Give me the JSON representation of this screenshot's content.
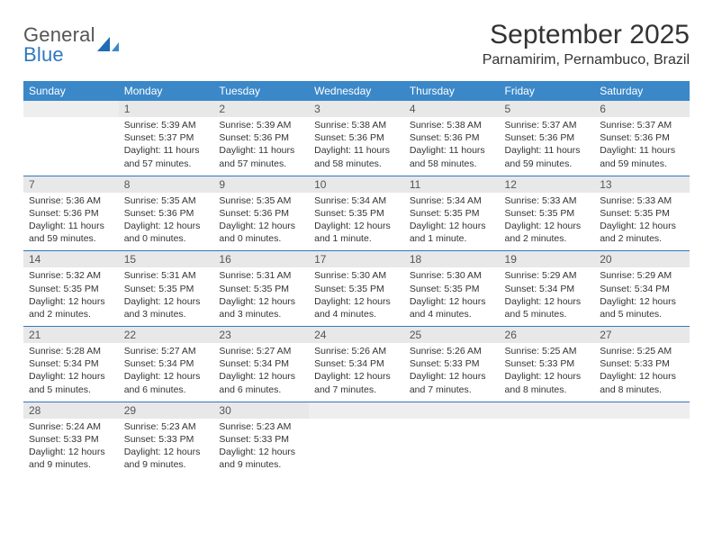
{
  "logo": {
    "line1": "General",
    "line2": "Blue"
  },
  "title": "September 2025",
  "location": "Parnamirim, Pernambuco, Brazil",
  "colors": {
    "header_bg": "#3b88c9",
    "header_text": "#ffffff",
    "daynum_bg": "#e8e8e8",
    "rule": "#2f78bf",
    "logo_gray": "#555555",
    "logo_blue": "#2f78bf"
  },
  "weekdays": [
    "Sunday",
    "Monday",
    "Tuesday",
    "Wednesday",
    "Thursday",
    "Friday",
    "Saturday"
  ],
  "weeks": [
    [
      {
        "n": "",
        "sunrise": "",
        "sunset": "",
        "daylight": ""
      },
      {
        "n": "1",
        "sunrise": "Sunrise: 5:39 AM",
        "sunset": "Sunset: 5:37 PM",
        "daylight": "Daylight: 11 hours and 57 minutes."
      },
      {
        "n": "2",
        "sunrise": "Sunrise: 5:39 AM",
        "sunset": "Sunset: 5:36 PM",
        "daylight": "Daylight: 11 hours and 57 minutes."
      },
      {
        "n": "3",
        "sunrise": "Sunrise: 5:38 AM",
        "sunset": "Sunset: 5:36 PM",
        "daylight": "Daylight: 11 hours and 58 minutes."
      },
      {
        "n": "4",
        "sunrise": "Sunrise: 5:38 AM",
        "sunset": "Sunset: 5:36 PM",
        "daylight": "Daylight: 11 hours and 58 minutes."
      },
      {
        "n": "5",
        "sunrise": "Sunrise: 5:37 AM",
        "sunset": "Sunset: 5:36 PM",
        "daylight": "Daylight: 11 hours and 59 minutes."
      },
      {
        "n": "6",
        "sunrise": "Sunrise: 5:37 AM",
        "sunset": "Sunset: 5:36 PM",
        "daylight": "Daylight: 11 hours and 59 minutes."
      }
    ],
    [
      {
        "n": "7",
        "sunrise": "Sunrise: 5:36 AM",
        "sunset": "Sunset: 5:36 PM",
        "daylight": "Daylight: 11 hours and 59 minutes."
      },
      {
        "n": "8",
        "sunrise": "Sunrise: 5:35 AM",
        "sunset": "Sunset: 5:36 PM",
        "daylight": "Daylight: 12 hours and 0 minutes."
      },
      {
        "n": "9",
        "sunrise": "Sunrise: 5:35 AM",
        "sunset": "Sunset: 5:36 PM",
        "daylight": "Daylight: 12 hours and 0 minutes."
      },
      {
        "n": "10",
        "sunrise": "Sunrise: 5:34 AM",
        "sunset": "Sunset: 5:35 PM",
        "daylight": "Daylight: 12 hours and 1 minute."
      },
      {
        "n": "11",
        "sunrise": "Sunrise: 5:34 AM",
        "sunset": "Sunset: 5:35 PM",
        "daylight": "Daylight: 12 hours and 1 minute."
      },
      {
        "n": "12",
        "sunrise": "Sunrise: 5:33 AM",
        "sunset": "Sunset: 5:35 PM",
        "daylight": "Daylight: 12 hours and 2 minutes."
      },
      {
        "n": "13",
        "sunrise": "Sunrise: 5:33 AM",
        "sunset": "Sunset: 5:35 PM",
        "daylight": "Daylight: 12 hours and 2 minutes."
      }
    ],
    [
      {
        "n": "14",
        "sunrise": "Sunrise: 5:32 AM",
        "sunset": "Sunset: 5:35 PM",
        "daylight": "Daylight: 12 hours and 2 minutes."
      },
      {
        "n": "15",
        "sunrise": "Sunrise: 5:31 AM",
        "sunset": "Sunset: 5:35 PM",
        "daylight": "Daylight: 12 hours and 3 minutes."
      },
      {
        "n": "16",
        "sunrise": "Sunrise: 5:31 AM",
        "sunset": "Sunset: 5:35 PM",
        "daylight": "Daylight: 12 hours and 3 minutes."
      },
      {
        "n": "17",
        "sunrise": "Sunrise: 5:30 AM",
        "sunset": "Sunset: 5:35 PM",
        "daylight": "Daylight: 12 hours and 4 minutes."
      },
      {
        "n": "18",
        "sunrise": "Sunrise: 5:30 AM",
        "sunset": "Sunset: 5:35 PM",
        "daylight": "Daylight: 12 hours and 4 minutes."
      },
      {
        "n": "19",
        "sunrise": "Sunrise: 5:29 AM",
        "sunset": "Sunset: 5:34 PM",
        "daylight": "Daylight: 12 hours and 5 minutes."
      },
      {
        "n": "20",
        "sunrise": "Sunrise: 5:29 AM",
        "sunset": "Sunset: 5:34 PM",
        "daylight": "Daylight: 12 hours and 5 minutes."
      }
    ],
    [
      {
        "n": "21",
        "sunrise": "Sunrise: 5:28 AM",
        "sunset": "Sunset: 5:34 PM",
        "daylight": "Daylight: 12 hours and 5 minutes."
      },
      {
        "n": "22",
        "sunrise": "Sunrise: 5:27 AM",
        "sunset": "Sunset: 5:34 PM",
        "daylight": "Daylight: 12 hours and 6 minutes."
      },
      {
        "n": "23",
        "sunrise": "Sunrise: 5:27 AM",
        "sunset": "Sunset: 5:34 PM",
        "daylight": "Daylight: 12 hours and 6 minutes."
      },
      {
        "n": "24",
        "sunrise": "Sunrise: 5:26 AM",
        "sunset": "Sunset: 5:34 PM",
        "daylight": "Daylight: 12 hours and 7 minutes."
      },
      {
        "n": "25",
        "sunrise": "Sunrise: 5:26 AM",
        "sunset": "Sunset: 5:33 PM",
        "daylight": "Daylight: 12 hours and 7 minutes."
      },
      {
        "n": "26",
        "sunrise": "Sunrise: 5:25 AM",
        "sunset": "Sunset: 5:33 PM",
        "daylight": "Daylight: 12 hours and 8 minutes."
      },
      {
        "n": "27",
        "sunrise": "Sunrise: 5:25 AM",
        "sunset": "Sunset: 5:33 PM",
        "daylight": "Daylight: 12 hours and 8 minutes."
      }
    ],
    [
      {
        "n": "28",
        "sunrise": "Sunrise: 5:24 AM",
        "sunset": "Sunset: 5:33 PM",
        "daylight": "Daylight: 12 hours and 9 minutes."
      },
      {
        "n": "29",
        "sunrise": "Sunrise: 5:23 AM",
        "sunset": "Sunset: 5:33 PM",
        "daylight": "Daylight: 12 hours and 9 minutes."
      },
      {
        "n": "30",
        "sunrise": "Sunrise: 5:23 AM",
        "sunset": "Sunset: 5:33 PM",
        "daylight": "Daylight: 12 hours and 9 minutes."
      },
      {
        "n": "",
        "sunrise": "",
        "sunset": "",
        "daylight": ""
      },
      {
        "n": "",
        "sunrise": "",
        "sunset": "",
        "daylight": ""
      },
      {
        "n": "",
        "sunrise": "",
        "sunset": "",
        "daylight": ""
      },
      {
        "n": "",
        "sunrise": "",
        "sunset": "",
        "daylight": ""
      }
    ]
  ]
}
